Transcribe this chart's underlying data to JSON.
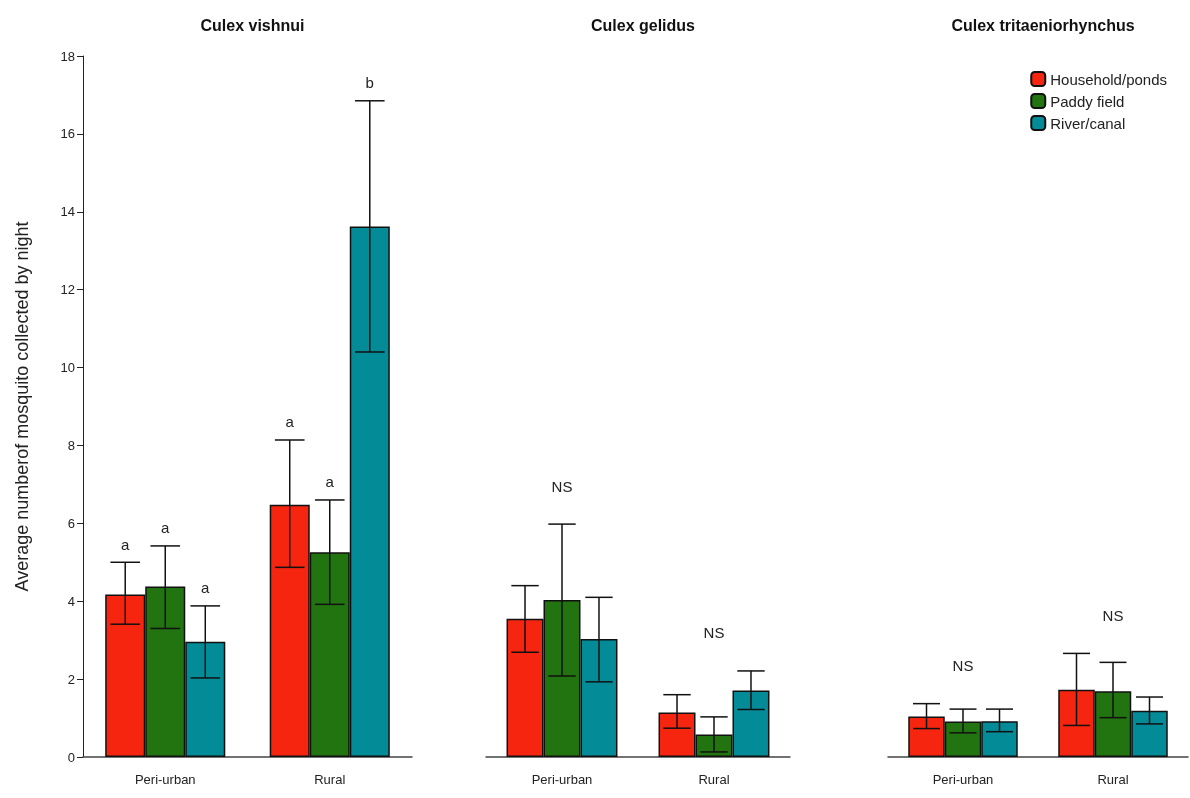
{
  "chart_data": [
    {
      "type": "bar",
      "title": "Culex vishnui",
      "ylabel": "Average numberof mosquito collected by night",
      "categories": [
        "Peri-urban",
        "Rural"
      ],
      "ylim": [
        0,
        18
      ],
      "yticks": [
        0,
        2,
        4,
        6,
        8,
        10,
        12,
        14,
        16,
        18
      ],
      "grid": false,
      "legend": false,
      "series": [
        {
          "color": "#f52510",
          "values": [
            4.17,
            6.48
          ],
          "errors": [
            [
              3.41,
              5.0
            ],
            [
              4.87,
              8.14
            ]
          ]
        },
        {
          "color": "#227411",
          "values": [
            4.38,
            5.26
          ],
          "errors": [
            [
              3.3,
              5.42
            ],
            [
              3.92,
              6.6
            ]
          ]
        },
        {
          "color": "#038b98",
          "values": [
            2.96,
            13.62
          ],
          "errors": [
            [
              2.03,
              3.88
            ],
            [
              10.4,
              16.85
            ]
          ]
        }
      ],
      "annotations": [
        "a",
        "a",
        "a",
        "a",
        "a",
        "b"
      ]
    },
    {
      "type": "bar",
      "title": "Culex gelidus",
      "categories": [
        "Peri-urban",
        "Rural"
      ],
      "ylim": [
        0,
        18
      ],
      "tick_labels": "x",
      "grid": false,
      "legend": false,
      "series": [
        {
          "color": "#f52510",
          "values": [
            3.55,
            1.14
          ],
          "errors": [
            [
              2.69,
              4.4
            ],
            [
              0.74,
              1.6
            ]
          ]
        },
        {
          "color": "#227411",
          "values": [
            4.03,
            0.58
          ],
          "errors": [
            [
              2.08,
              5.98
            ],
            [
              0.13,
              1.03
            ]
          ]
        },
        {
          "color": "#038b98",
          "values": [
            3.03,
            1.71
          ],
          "errors": [
            [
              1.93,
              4.1
            ],
            [
              1.22,
              2.21
            ]
          ]
        }
      ],
      "annotations": [
        "NS",
        "NS"
      ]
    },
    {
      "type": "bar",
      "title": "Culex tritaeniorhynchus",
      "categories": [
        "Peri-urban",
        "Rural"
      ],
      "ylim": [
        0,
        18
      ],
      "tick_labels": "x",
      "grid": false,
      "legend": "top right",
      "series": [
        {
          "name": "Household/ponds",
          "color": "#f52510",
          "values": [
            1.04,
            1.73
          ],
          "errors": [
            [
              0.73,
              1.37
            ],
            [
              0.81,
              2.66
            ]
          ]
        },
        {
          "name": "Paddy field",
          "color": "#227411",
          "values": [
            0.91,
            1.69
          ],
          "errors": [
            [
              0.62,
              1.23
            ],
            [
              1.01,
              2.43
            ]
          ]
        },
        {
          "name": "River/canal",
          "color": "#038b98",
          "values": [
            0.92,
            1.19
          ],
          "errors": [
            [
              0.65,
              1.23
            ],
            [
              0.85,
              1.54
            ]
          ]
        }
      ],
      "annotations": [
        "NS",
        "NS"
      ]
    }
  ]
}
